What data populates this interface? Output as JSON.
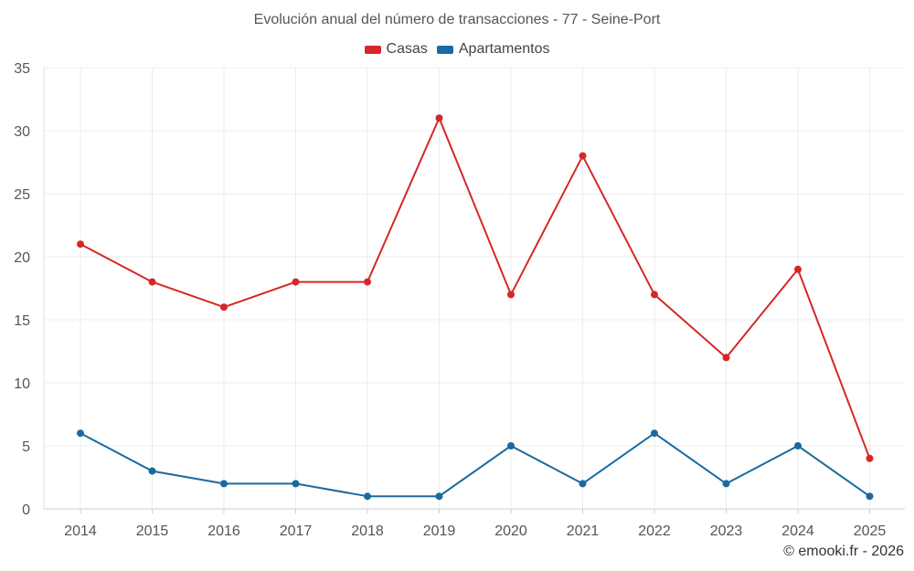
{
  "chart_data": {
    "type": "line",
    "title": "Evolución anual del número de transacciones - 77 - Seine-Port",
    "categories": [
      "2014",
      "2015",
      "2016",
      "2017",
      "2018",
      "2019",
      "2020",
      "2021",
      "2022",
      "2023",
      "2024",
      "2025"
    ],
    "series": [
      {
        "name": "Casas",
        "color": "#d62728",
        "values": [
          21,
          18,
          16,
          18,
          18,
          31,
          17,
          28,
          17,
          12,
          19,
          4
        ]
      },
      {
        "name": "Apartamentos",
        "color": "#1a6aa0",
        "values": [
          6,
          3,
          2,
          2,
          1,
          1,
          5,
          2,
          6,
          2,
          5,
          1
        ]
      }
    ],
    "ylim": [
      0,
      35
    ],
    "yticks": [
      0,
      5,
      10,
      15,
      20,
      25,
      30,
      35
    ],
    "grid": true,
    "legend_position": "top-center",
    "xlabel": "",
    "ylabel": ""
  },
  "credit": "© emooki.fr - 2026"
}
